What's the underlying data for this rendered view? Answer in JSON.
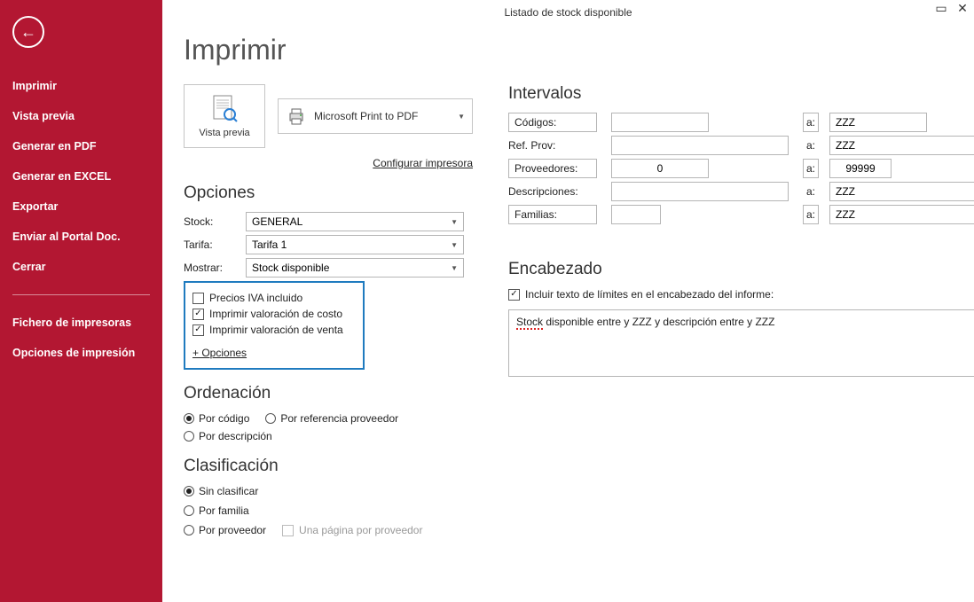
{
  "window_title": "Listado de stock disponible",
  "page_title": "Imprimir",
  "sidebar": {
    "items": [
      {
        "label": "Imprimir"
      },
      {
        "label": "Vista previa"
      },
      {
        "label": "Generar en PDF"
      },
      {
        "label": "Generar en EXCEL"
      },
      {
        "label": "Exportar"
      },
      {
        "label": "Enviar al Portal Doc."
      },
      {
        "label": "Cerrar"
      }
    ],
    "secondary": [
      {
        "label": "Fichero de impresoras"
      },
      {
        "label": "Opciones de impresión"
      }
    ]
  },
  "preview_button_label": "Vista previa",
  "printer_name": "Microsoft Print to PDF",
  "configure_printer": "Configurar impresora",
  "opciones": {
    "title": "Opciones",
    "rows": [
      {
        "label": "Stock:",
        "value": "GENERAL"
      },
      {
        "label": "Tarifa:",
        "value": "Tarifa 1"
      },
      {
        "label": "Mostrar:",
        "value": "Stock disponible"
      }
    ],
    "checks": [
      {
        "label": "Precios IVA incluido",
        "checked": false
      },
      {
        "label": "Imprimir valoración de costo",
        "checked": true
      },
      {
        "label": "Imprimir valoración de venta",
        "checked": true
      }
    ],
    "more": "+ Opciones"
  },
  "ordenacion": {
    "title": "Ordenación",
    "radios": [
      {
        "label": "Por código",
        "checked": true
      },
      {
        "label": "Por referencia proveedor",
        "checked": false
      },
      {
        "label": "Por descripción",
        "checked": false
      }
    ]
  },
  "clasificacion": {
    "title": "Clasificación",
    "radios": [
      {
        "label": "Sin clasificar",
        "checked": true
      },
      {
        "label": "Por familia",
        "checked": false
      },
      {
        "label": "Por proveedor",
        "checked": false
      }
    ],
    "subcheck": "Una página por proveedor"
  },
  "intervalos": {
    "title": "Intervalos",
    "a_label": "a:",
    "rows": [
      {
        "label": "Códigos:",
        "boxed": true,
        "from": "",
        "to": "ZZZ",
        "from_w": 110,
        "to_w": 110
      },
      {
        "label": "Ref. Prov:",
        "boxed": false,
        "from": "",
        "to": "ZZZ",
        "from_w": 200,
        "to_w": 180
      },
      {
        "label": "Proveedores:",
        "boxed": true,
        "from": "0",
        "to": "99999",
        "from_w": 110,
        "to_w": 70,
        "center": true
      },
      {
        "label": "Descripciones:",
        "boxed": false,
        "from": "",
        "to": "ZZZ",
        "from_w": 200,
        "to_w": 180
      },
      {
        "label": "Familias:",
        "boxed": true,
        "from": "",
        "to": "ZZZ",
        "from_w": 56,
        "to_w": 180
      }
    ]
  },
  "encabezado": {
    "title": "Encabezado",
    "check_label": "Incluir texto de límites en el encabezado del informe:",
    "checked": true,
    "text_before": "Stock",
    "text_after": " disponible entre  y ZZZ y descripción entre  y ZZZ"
  },
  "colors": {
    "sidebar_bg": "#b31732",
    "highlight_border": "#1f7bbf"
  }
}
